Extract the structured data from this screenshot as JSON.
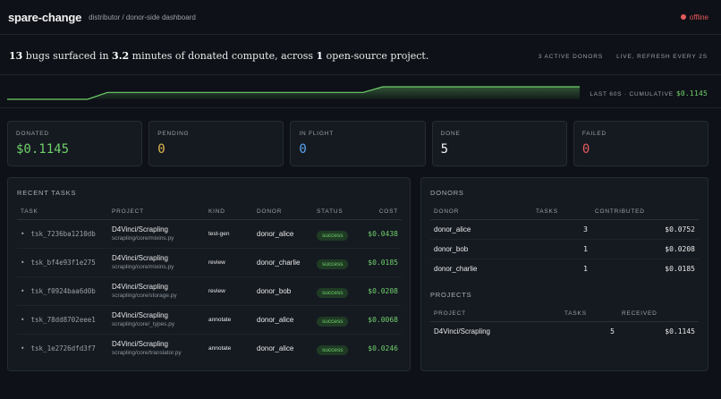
{
  "header": {
    "brand": "spare-change",
    "crumb": "distributor / donor-side dashboard",
    "status": "offline"
  },
  "summary": {
    "bugs": "13",
    "bugs_text": " bugs surfaced in ",
    "minutes": "3.2",
    "minutes_text": " minutes of donated compute, across ",
    "projects": "1",
    "projects_text": " open-source project."
  },
  "meta": {
    "active_donors": "3 ACTIVE DONORS",
    "live": "LIVE, REFRESH EVERY 2S"
  },
  "sparkline": {
    "label": "LAST 60S · CUMULATIVE",
    "value": "$0.1145",
    "color": "#6fcf6a",
    "levels": [
      0.0,
      0.0,
      0.55,
      0.55,
      1.0,
      1.0
    ]
  },
  "cards": [
    {
      "label": "DONATED",
      "value": "$0.1145",
      "color": "#6fcf6a"
    },
    {
      "label": "PENDING",
      "value": "0",
      "color": "#e0b84a"
    },
    {
      "label": "IN FLIGHT",
      "value": "0",
      "color": "#5aa4f0"
    },
    {
      "label": "DONE",
      "value": "5",
      "color": "#f2f2f2"
    },
    {
      "label": "FAILED",
      "value": "0",
      "color": "#e35b5b"
    }
  ],
  "recent_tasks": {
    "title": "RECENT TASKS",
    "columns": {
      "task": "TASK",
      "project": "PROJECT",
      "kind": "KIND",
      "donor": "DONOR",
      "status": "STATUS",
      "cost": "COST"
    },
    "rows": [
      {
        "task": "tsk_7236ba1210db",
        "project": "D4Vinci/Scrapling",
        "path": "scrapling/core/mixins.py",
        "kind": "test-gen",
        "donor": "donor_alice",
        "status": "success",
        "cost": "$0.0438"
      },
      {
        "task": "tsk_bf4e93f1e275",
        "project": "D4Vinci/Scrapling",
        "path": "scrapling/core/mixins.py",
        "kind": "review",
        "donor": "donor_charlie",
        "status": "success",
        "cost": "$0.0185"
      },
      {
        "task": "tsk_f0924baa6d0b",
        "project": "D4Vinci/Scrapling",
        "path": "scrapling/core/storage.py",
        "kind": "review",
        "donor": "donor_bob",
        "status": "success",
        "cost": "$0.0208"
      },
      {
        "task": "tsk_78dd8702eee1",
        "project": "D4Vinci/Scrapling",
        "path": "scrapling/core/_types.py",
        "kind": "annotate",
        "donor": "donor_alice",
        "status": "success",
        "cost": "$0.0068"
      },
      {
        "task": "tsk_1e2726dfd3f7",
        "project": "D4Vinci/Scrapling",
        "path": "scrapling/core/translator.py",
        "kind": "annotate",
        "donor": "donor_alice",
        "status": "success",
        "cost": "$0.0246"
      }
    ]
  },
  "donors": {
    "title": "DONORS",
    "columns": {
      "donor": "DONOR",
      "tasks": "TASKS",
      "contributed": "CONTRIBUTED"
    },
    "rows": [
      {
        "donor": "donor_alice",
        "tasks": "3",
        "contributed": "$0.0752"
      },
      {
        "donor": "donor_bob",
        "tasks": "1",
        "contributed": "$0.0208"
      },
      {
        "donor": "donor_charlie",
        "tasks": "1",
        "contributed": "$0.0185"
      }
    ]
  },
  "projects": {
    "title": "PROJECTS",
    "columns": {
      "project": "PROJECT",
      "tasks": "TASKS",
      "received": "RECEIVED"
    },
    "rows": [
      {
        "project": "D4Vinci/Scrapling",
        "tasks": "5",
        "received": "$0.1145"
      }
    ]
  }
}
